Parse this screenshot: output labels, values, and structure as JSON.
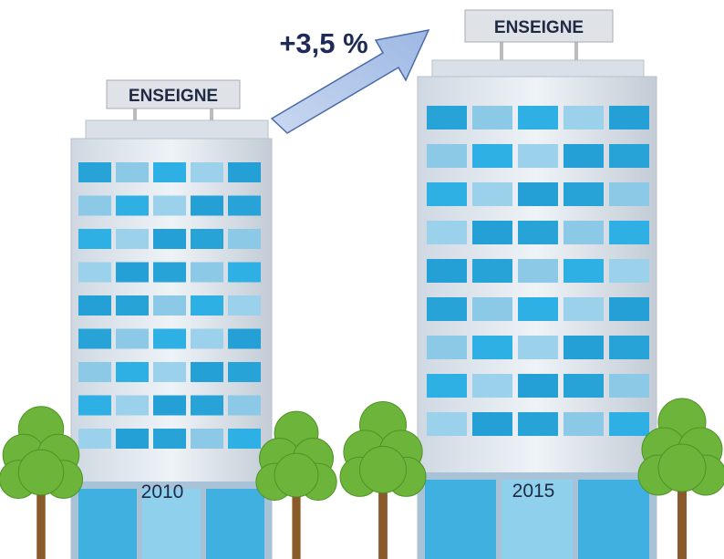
{
  "growth": "+3,5 %",
  "buildings": [
    {
      "sign": "ENSEIGNE",
      "year": "2010"
    },
    {
      "sign": "ENSEIGNE",
      "year": "2015"
    }
  ]
}
